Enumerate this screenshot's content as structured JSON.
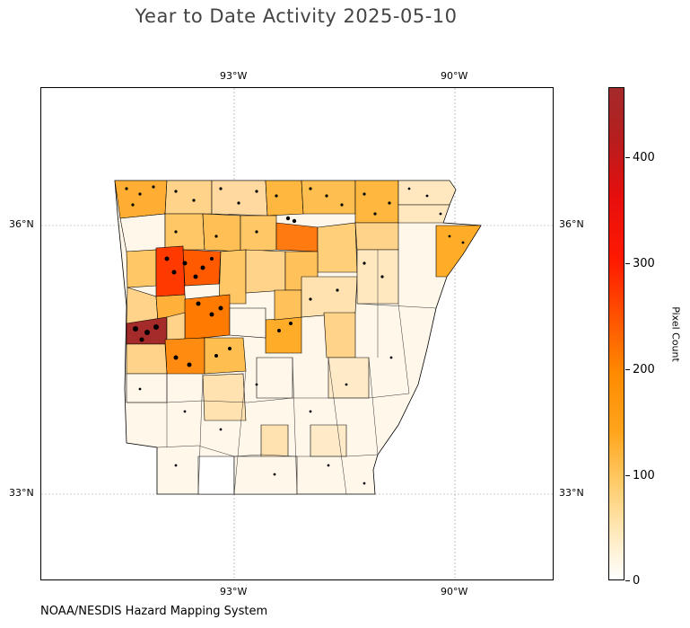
{
  "title": "Year to Date Activity 2025-05-10",
  "map": {
    "lon_labels": [
      "93°W",
      "90°W"
    ],
    "lat_labels": [
      "36°N",
      "33°N"
    ],
    "region": "Arkansas counties",
    "colors": {
      "background": "#ffffff",
      "border": "#000000",
      "hotspot_marker": "#000000",
      "graticule": "#999999"
    }
  },
  "colorbar": {
    "title": "Pixel Count",
    "tick_labels": [
      "0",
      "100",
      "200",
      "300",
      "400"
    ],
    "min": 0,
    "max": 465,
    "colors": [
      "#ffffff",
      "#ffca66",
      "#ffa51c",
      "#ff8a00",
      "#ff1a00",
      "#a52a2a"
    ]
  },
  "credit": "NOAA/NESDIS Hazard Mapping System"
}
